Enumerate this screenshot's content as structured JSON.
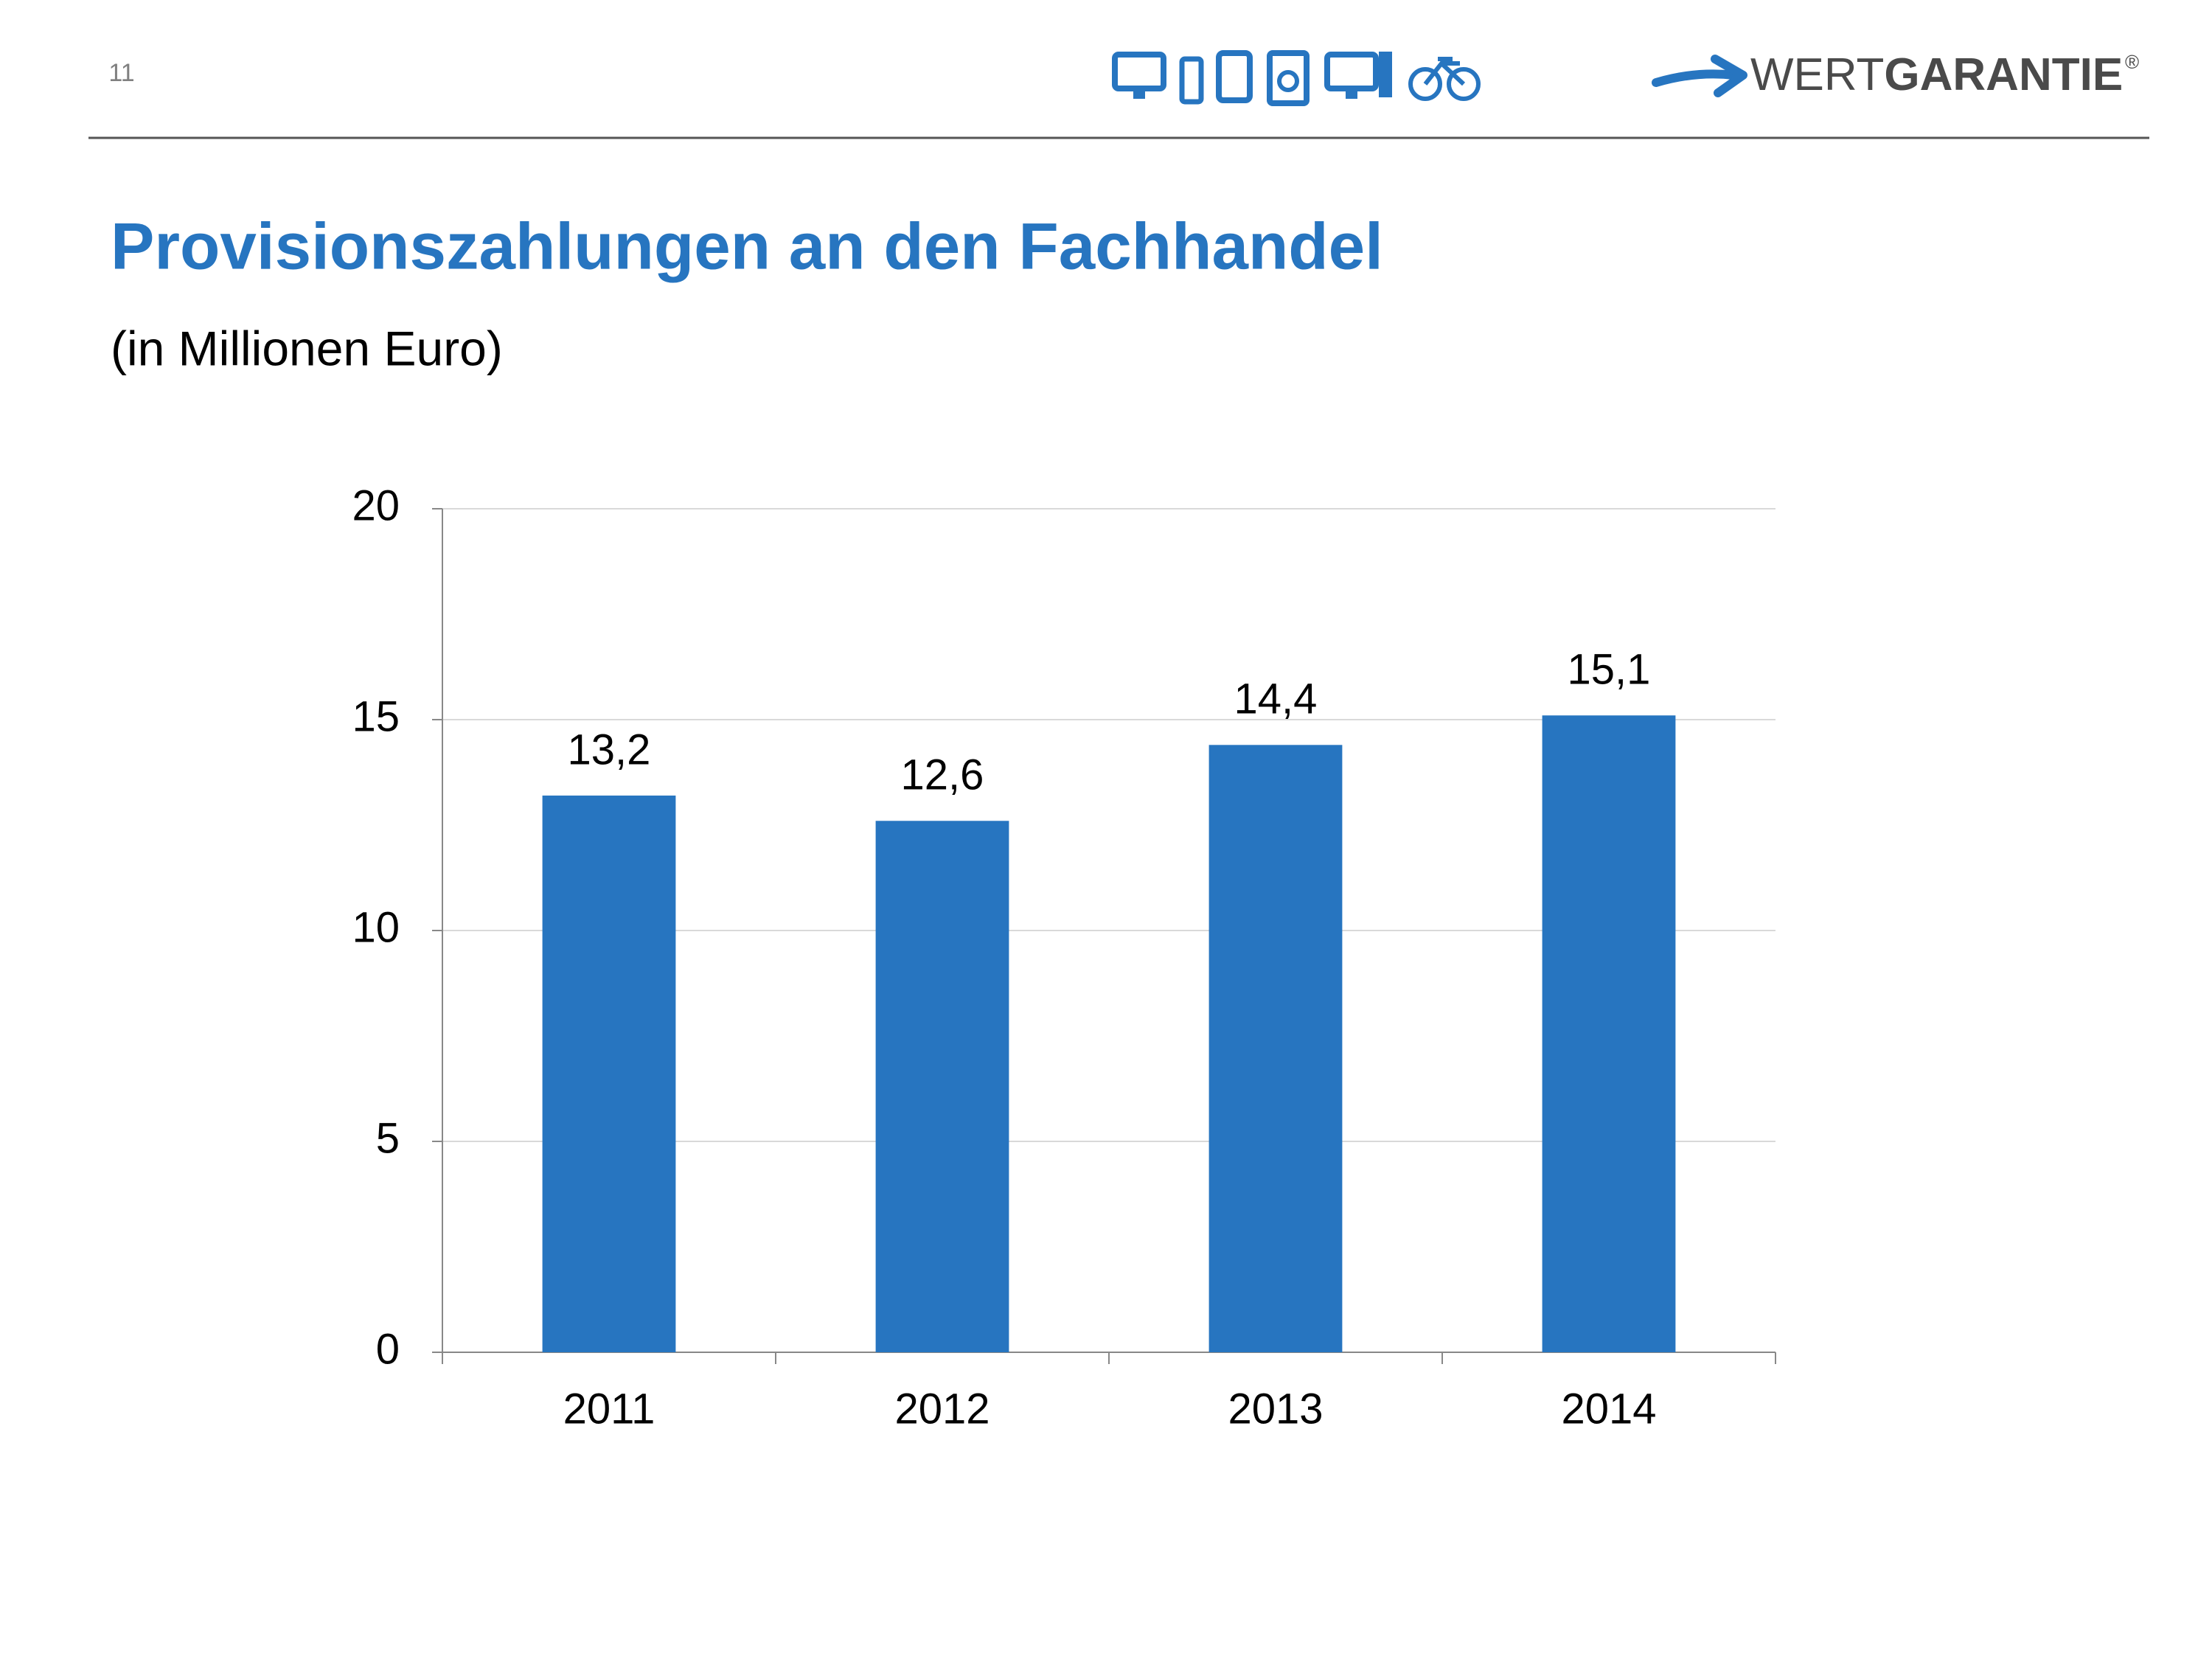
{
  "page_number": "11",
  "logo": {
    "wert": "WERT",
    "garantie": "GARANTIE",
    "mark": "®"
  },
  "chart_data": {
    "type": "bar",
    "title": "Provisionszahlungen an den Fachhandel",
    "subtitle": "(in Millionen Euro)",
    "categories": [
      "2011",
      "2012",
      "2013",
      "2014"
    ],
    "values": [
      13.2,
      12.6,
      14.4,
      15.1
    ],
    "value_labels": [
      "13,2",
      "12,6",
      "14,4",
      "15,1"
    ],
    "color": "#2775c0",
    "ylim": [
      0,
      20
    ],
    "yticks": [
      0,
      5,
      10,
      15,
      20
    ],
    "grid": true
  }
}
